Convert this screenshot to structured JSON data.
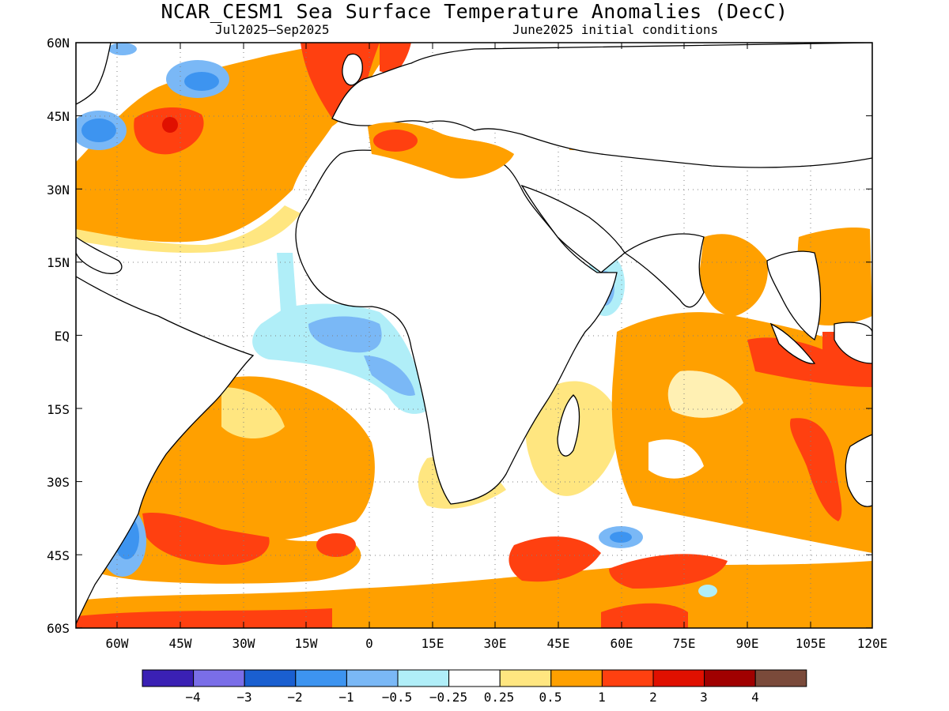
{
  "title": "NCAR_CESM1 Sea Surface Temperature Anomalies (DecC)",
  "subtitle_left": "Jul2025–Sep2025",
  "subtitle_right": "June2025 initial conditions",
  "map": {
    "lat_labels": [
      "60N",
      "45N",
      "30N",
      "15N",
      "EQ",
      "15S",
      "30S",
      "45S",
      "60S"
    ],
    "lon_labels": [
      "60W",
      "45W",
      "30W",
      "15W",
      "0",
      "15E",
      "30E",
      "45E",
      "60E",
      "75E",
      "90E",
      "105E",
      "120E"
    ]
  },
  "colorbar": {
    "colors": [
      "#3a20b4",
      "#7a6ee8",
      "#1a5fd0",
      "#3d94f0",
      "#7ab8f6",
      "#b0eef8",
      "#ffffff",
      "#ffe680",
      "#ffa000",
      "#ff4010",
      "#e01000",
      "#a00000",
      "#7a4a3a"
    ],
    "tick_labels": [
      "−4",
      "−3",
      "−2",
      "−1",
      "−0.5",
      "−0.25",
      "0.25",
      "0.5",
      "1",
      "2",
      "3",
      "4"
    ]
  }
}
